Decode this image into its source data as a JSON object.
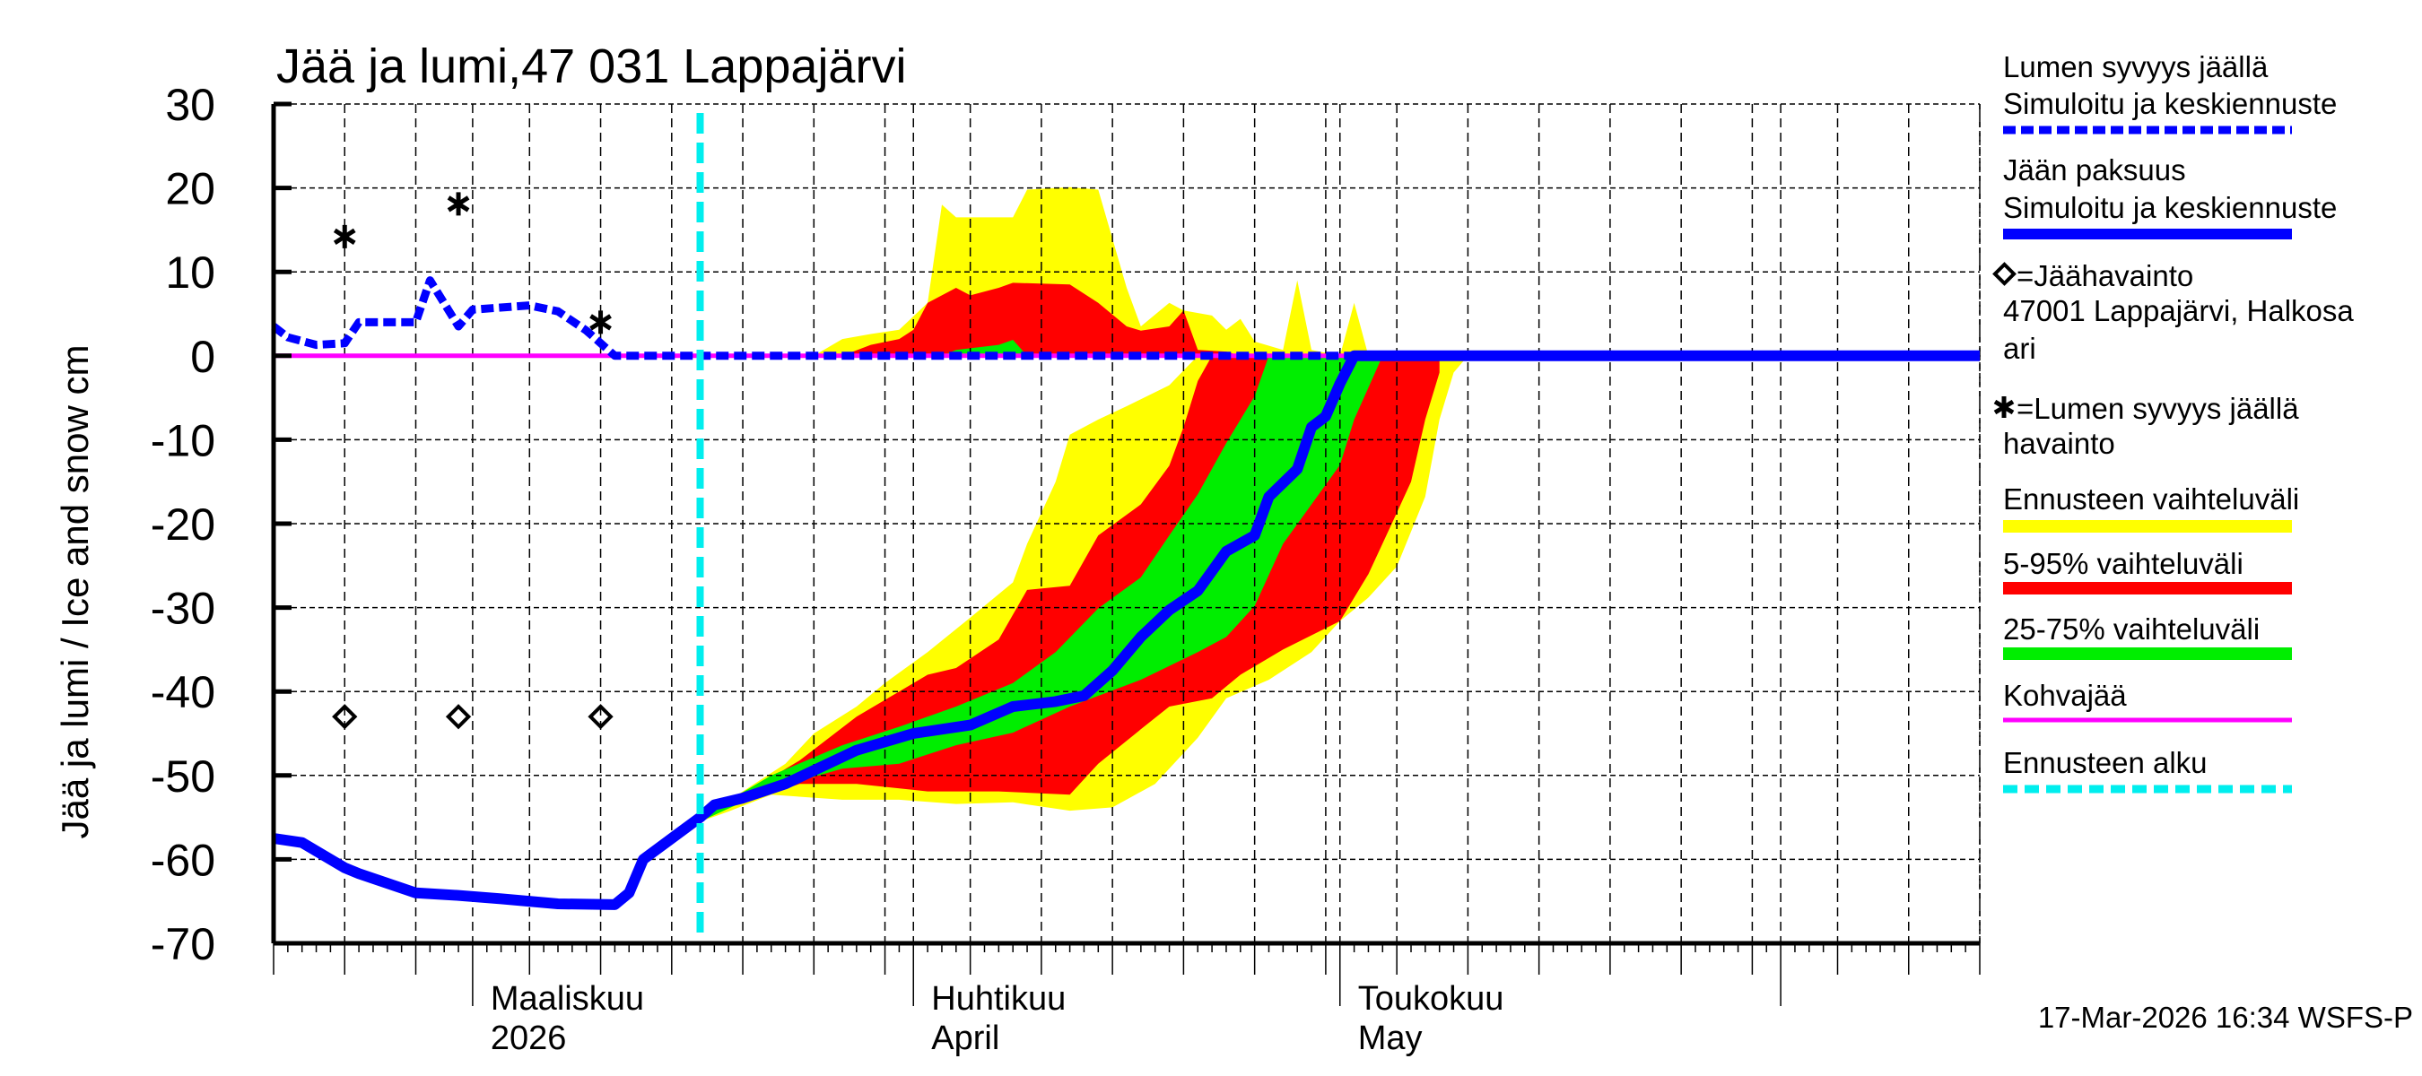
{
  "chart_data": {
    "type": "area",
    "title": "Jää ja lumi,47 031 Lappajärvi",
    "ylabel": "Jää ja lumi / Ice and snow    cm",
    "xlabel": "",
    "xlim": [
      "2026-02-15",
      "2026-06-15"
    ],
    "ylim": [
      -70,
      30
    ],
    "yticks": [
      "30",
      "20",
      "10",
      "0",
      "-10",
      "-20",
      "-30",
      "-40",
      "-50",
      "-60",
      "-70"
    ],
    "grid": true,
    "legend_placement": "right",
    "month_labels": [
      {
        "date": "2026-03-01",
        "line1": "Maaliskuu",
        "line2": "2026"
      },
      {
        "date": "2026-04-01",
        "line1": "Huhtikuu",
        "line2": "April"
      },
      {
        "date": "2026-05-01",
        "line1": "Toukokuu",
        "line2": "May"
      }
    ],
    "forecast_start": "2026-03-17",
    "colors": {
      "snow_line": "#0000ff",
      "ice_line": "#0000ff",
      "range_all": "#ffff00",
      "range_5_95": "#ff0000",
      "range_25_75": "#00ee00",
      "slush": "#ff00ff",
      "forecast_start": "#00eeee"
    },
    "bands": [
      {
        "name": "Ennusteen vaihteluväli",
        "color": "#ffff00",
        "snow_upper": [
          [
            "2026-03-25",
            0
          ],
          [
            "2026-03-27",
            2
          ],
          [
            "2026-03-29",
            2.6
          ],
          [
            "2026-03-31",
            3.1
          ],
          [
            "2026-04-02",
            6.3
          ],
          [
            "2026-04-03",
            18
          ],
          [
            "2026-04-04",
            16.5
          ],
          [
            "2026-04-08",
            16.5
          ],
          [
            "2026-04-09",
            19.8
          ],
          [
            "2026-04-12",
            20.1
          ],
          [
            "2026-04-14",
            19.8
          ],
          [
            "2026-04-16",
            8.1
          ],
          [
            "2026-04-17",
            3.5
          ],
          [
            "2026-04-19",
            6.3
          ],
          [
            "2026-04-20",
            5.4
          ],
          [
            "2026-04-22",
            4.8
          ],
          [
            "2026-04-23",
            3.1
          ],
          [
            "2026-04-24",
            4.4
          ],
          [
            "2026-04-25",
            1.7
          ],
          [
            "2026-04-27",
            0.7
          ],
          [
            "2026-04-28",
            9
          ],
          [
            "2026-04-29",
            0.7
          ],
          [
            "2026-05-01",
            0
          ],
          [
            "2026-05-02",
            6.3
          ],
          [
            "2026-05-03",
            0
          ]
        ],
        "ice_upper": [
          [
            "2026-03-17",
            -55
          ],
          [
            "2026-03-19",
            -53
          ],
          [
            "2026-03-23",
            -48.6
          ],
          [
            "2026-03-25",
            -45
          ],
          [
            "2026-03-28",
            -41.8
          ],
          [
            "2026-03-30",
            -39
          ],
          [
            "2026-04-02",
            -35.3
          ],
          [
            "2026-04-05",
            -31.2
          ],
          [
            "2026-04-08",
            -27
          ],
          [
            "2026-04-09",
            -22.4
          ],
          [
            "2026-04-11",
            -15
          ],
          [
            "2026-04-12",
            -9.4
          ],
          [
            "2026-04-14",
            -7.6
          ],
          [
            "2026-04-16",
            -6
          ],
          [
            "2026-04-19",
            -3.5
          ],
          [
            "2026-04-21",
            0
          ]
        ],
        "ice_lower": [
          [
            "2026-03-17",
            -55.5
          ],
          [
            "2026-03-19",
            -54.3
          ],
          [
            "2026-03-22",
            -52.3
          ],
          [
            "2026-03-27",
            -52.9
          ],
          [
            "2026-03-31",
            -52.9
          ],
          [
            "2026-04-04",
            -53.4
          ],
          [
            "2026-04-08",
            -53.2
          ],
          [
            "2026-04-12",
            -54.2
          ],
          [
            "2026-04-15",
            -53.8
          ],
          [
            "2026-04-18",
            -51
          ],
          [
            "2026-04-21",
            -45.5
          ],
          [
            "2026-04-23",
            -40.8
          ],
          [
            "2026-04-26",
            -38.6
          ],
          [
            "2026-04-29",
            -35.3
          ],
          [
            "2026-05-01",
            -31.6
          ],
          [
            "2026-05-03",
            -28.8
          ],
          [
            "2026-05-05",
            -25.1
          ],
          [
            "2026-05-07",
            -16.8
          ],
          [
            "2026-05-08",
            -7.6
          ],
          [
            "2026-05-09",
            -2
          ],
          [
            "2026-05-10",
            0
          ]
        ]
      },
      {
        "name": "5-95% vaihteluväli",
        "color": "#ff0000",
        "snow_upper": [
          [
            "2026-03-27",
            0
          ],
          [
            "2026-03-29",
            1.3
          ],
          [
            "2026-03-31",
            2
          ],
          [
            "2026-04-01",
            3.1
          ],
          [
            "2026-04-02",
            6.3
          ],
          [
            "2026-04-04",
            8.1
          ],
          [
            "2026-04-05",
            7.2
          ],
          [
            "2026-04-07",
            8.1
          ],
          [
            "2026-04-08",
            8.7
          ],
          [
            "2026-04-12",
            8.5
          ],
          [
            "2026-04-14",
            6.3
          ],
          [
            "2026-04-16",
            3.5
          ],
          [
            "2026-04-17",
            3
          ],
          [
            "2026-04-19",
            3.5
          ],
          [
            "2026-04-20",
            5.4
          ],
          [
            "2026-04-21",
            0.7
          ],
          [
            "2026-04-23",
            0.5
          ],
          [
            "2026-04-24",
            0
          ]
        ],
        "ice_upper": [
          [
            "2026-03-17",
            -55
          ],
          [
            "2026-03-20",
            -52.3
          ],
          [
            "2026-03-24",
            -48.2
          ],
          [
            "2026-03-28",
            -43
          ],
          [
            "2026-04-02",
            -38
          ],
          [
            "2026-04-04",
            -37.2
          ],
          [
            "2026-04-07",
            -33.8
          ],
          [
            "2026-04-09",
            -27.9
          ],
          [
            "2026-04-12",
            -27.4
          ],
          [
            "2026-04-14",
            -21.4
          ],
          [
            "2026-04-17",
            -17.7
          ],
          [
            "2026-04-19",
            -13.1
          ],
          [
            "2026-04-20",
            -8.5
          ],
          [
            "2026-04-21",
            -3
          ],
          [
            "2026-04-22",
            0
          ]
        ],
        "ice_lower": [
          [
            "2026-03-17",
            -55.5
          ],
          [
            "2026-03-19",
            -53.8
          ],
          [
            "2026-03-24",
            -51
          ],
          [
            "2026-03-28",
            -51
          ],
          [
            "2026-04-02",
            -51.9
          ],
          [
            "2026-04-07",
            -51.9
          ],
          [
            "2026-04-12",
            -52.3
          ],
          [
            "2026-04-14",
            -48.6
          ],
          [
            "2026-04-17",
            -44.5
          ],
          [
            "2026-04-19",
            -41.8
          ],
          [
            "2026-04-22",
            -40.8
          ],
          [
            "2026-04-24",
            -38
          ],
          [
            "2026-04-27",
            -35
          ],
          [
            "2026-05-01",
            -31.6
          ],
          [
            "2026-05-03",
            -26
          ],
          [
            "2026-05-05",
            -18.7
          ],
          [
            "2026-05-06",
            -15
          ],
          [
            "2026-05-07",
            -7.6
          ],
          [
            "2026-05-08",
            -2
          ],
          [
            "2026-05-08",
            0
          ]
        ]
      },
      {
        "name": "25-75% vaihteluväli",
        "color": "#00ee00",
        "snow_upper": [
          [
            "2026-04-03",
            0
          ],
          [
            "2026-04-04",
            0.7
          ],
          [
            "2026-04-07",
            1.3
          ],
          [
            "2026-04-08",
            1.9
          ],
          [
            "2026-04-09",
            0
          ]
        ],
        "ice_upper": [
          [
            "2026-03-17",
            -55
          ],
          [
            "2026-03-22",
            -50
          ],
          [
            "2026-03-27",
            -46.4
          ],
          [
            "2026-03-31",
            -44.2
          ],
          [
            "2026-04-04",
            -41.8
          ],
          [
            "2026-04-08",
            -39
          ],
          [
            "2026-04-11",
            -35.3
          ],
          [
            "2026-04-14",
            -30.1
          ],
          [
            "2026-04-17",
            -26.4
          ],
          [
            "2026-04-19",
            -21.4
          ],
          [
            "2026-04-21",
            -16.5
          ],
          [
            "2026-04-23",
            -10.4
          ],
          [
            "2026-04-25",
            -4.8
          ],
          [
            "2026-04-26",
            0
          ]
        ],
        "ice_lower": [
          [
            "2026-03-17",
            -55.5
          ],
          [
            "2026-03-22",
            -51.6
          ],
          [
            "2026-03-27",
            -49.2
          ],
          [
            "2026-03-31",
            -48.6
          ],
          [
            "2026-04-04",
            -46.4
          ],
          [
            "2026-04-08",
            -44.9
          ],
          [
            "2026-04-12",
            -41.8
          ],
          [
            "2026-04-17",
            -38.6
          ],
          [
            "2026-04-21",
            -35.3
          ],
          [
            "2026-04-23",
            -33.5
          ],
          [
            "2026-04-25",
            -29.8
          ],
          [
            "2026-04-27",
            -22.4
          ],
          [
            "2026-05-01",
            -13
          ],
          [
            "2026-05-02",
            -7.6
          ],
          [
            "2026-05-04",
            0
          ]
        ]
      }
    ],
    "series": [
      {
        "name": "Lumen syvyys jäällä Simuloitu ja keskiennuste",
        "style": "dashed",
        "points": [
          [
            "2026-02-15",
            3.5
          ],
          [
            "2026-02-16",
            2.2
          ],
          [
            "2026-02-18",
            1.3
          ],
          [
            "2026-02-20",
            1.5
          ],
          [
            "2026-02-21",
            4
          ],
          [
            "2026-02-25",
            4
          ],
          [
            "2026-02-26",
            9
          ],
          [
            "2026-02-28",
            3.5
          ],
          [
            "2026-03-01",
            5.5
          ],
          [
            "2026-03-05",
            6
          ],
          [
            "2026-03-07",
            5.3
          ],
          [
            "2026-03-09",
            3
          ],
          [
            "2026-03-11",
            0
          ],
          [
            "2026-06-15",
            0
          ]
        ]
      },
      {
        "name": "Jään paksuus Simuloitu ja keskiennuste",
        "style": "solid",
        "points": [
          [
            "2026-02-15",
            -57.5
          ],
          [
            "2026-02-17",
            -58
          ],
          [
            "2026-02-20",
            -61
          ],
          [
            "2026-02-21",
            -61.7
          ],
          [
            "2026-02-25",
            -64
          ],
          [
            "2026-02-28",
            -64.3
          ],
          [
            "2026-03-03",
            -64.7
          ],
          [
            "2026-03-07",
            -65.3
          ],
          [
            "2026-03-11",
            -65.4
          ],
          [
            "2026-03-12",
            -64
          ],
          [
            "2026-03-13",
            -60
          ],
          [
            "2026-03-15",
            -57.5
          ],
          [
            "2026-03-17",
            -55
          ],
          [
            "2026-03-18",
            -53.5
          ],
          [
            "2026-03-20",
            -52.7
          ],
          [
            "2026-03-23",
            -51
          ],
          [
            "2026-03-25",
            -49.4
          ],
          [
            "2026-03-28",
            -47
          ],
          [
            "2026-03-30",
            -46
          ],
          [
            "2026-04-01",
            -45
          ],
          [
            "2026-04-05",
            -44
          ],
          [
            "2026-04-08",
            -41.8
          ],
          [
            "2026-04-11",
            -41.2
          ],
          [
            "2026-04-13",
            -40.5
          ],
          [
            "2026-04-15",
            -37.5
          ],
          [
            "2026-04-17",
            -33.5
          ],
          [
            "2026-04-19",
            -30.3
          ],
          [
            "2026-04-21",
            -28
          ],
          [
            "2026-04-23",
            -23.3
          ],
          [
            "2026-04-25",
            -21.4
          ],
          [
            "2026-04-26",
            -16.8
          ],
          [
            "2026-04-28",
            -13.5
          ],
          [
            "2026-04-29",
            -8.5
          ],
          [
            "2026-04-30",
            -7.2
          ],
          [
            "2026-05-01",
            -3.3
          ],
          [
            "2026-05-02",
            0
          ],
          [
            "2026-06-15",
            0
          ]
        ]
      },
      {
        "name": "Kohvajää",
        "style": "solid",
        "points": [
          [
            "2026-02-15",
            0
          ],
          [
            "2026-06-15",
            0
          ]
        ]
      }
    ],
    "observations": {
      "ice": [
        [
          "2026-02-20",
          -43
        ],
        [
          "2026-02-28",
          -43
        ],
        [
          "2026-03-10",
          -43
        ]
      ],
      "snow": [
        [
          "2026-02-20",
          14.2
        ],
        [
          "2026-02-28",
          18.1
        ],
        [
          "2026-03-10",
          4
        ]
      ]
    }
  },
  "legend": {
    "snow_line": {
      "line1": "Lumen syvyys jäällä",
      "line2": "Simuloitu ja keskiennuste"
    },
    "ice_line": {
      "line1": "Jään paksuus",
      "line2": "Simuloitu ja keskiennuste"
    },
    "ice_obs": {
      "line1": "=Jäähavainto",
      "line2": "47001 Lappajärvi, Halkosa",
      "line3": "ari"
    },
    "snow_obs": {
      "line1": "=Lumen syvyys jäällä",
      "line2": "havainto"
    },
    "range_all": "Ennusteen vaihteluväli",
    "range_5_95": "5-95% vaihteluväli",
    "range_25_75": "25-75% vaihteluväli",
    "slush": "Kohvajää",
    "forecast_start": "Ennusteen alku"
  },
  "footer": "17-Mar-2026 16:34 WSFS-P"
}
